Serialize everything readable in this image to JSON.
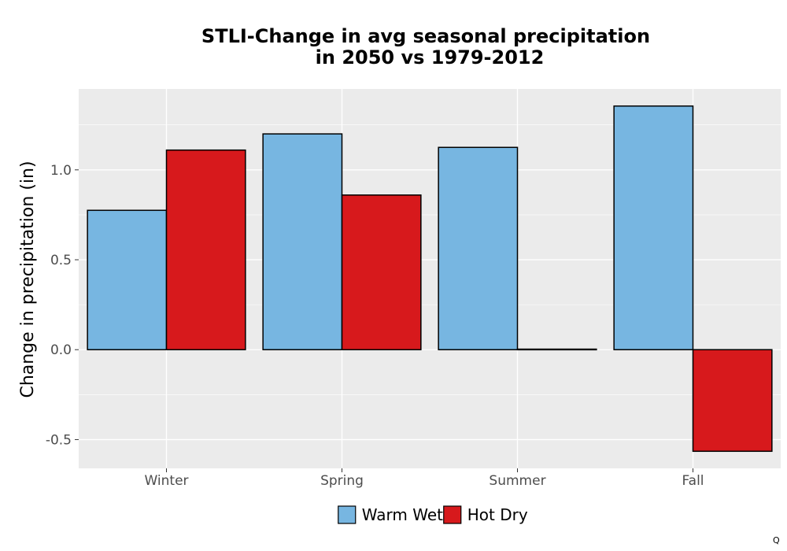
{
  "chart_data": {
    "type": "bar",
    "title": "STLI-Change in avg seasonal precipitation",
    "subtitle": "in 2050 vs 1979-2012",
    "xlabel": "",
    "ylabel": "Change in precipitation (in)",
    "categories": [
      "Winter",
      "Spring",
      "Summer",
      "Fall"
    ],
    "series": [
      {
        "name": "Warm Wet",
        "color": "#77b6e1",
        "values": [
          0.775,
          1.2,
          1.125,
          1.355
        ]
      },
      {
        "name": "Hot Dry",
        "color": "#d7191c",
        "values": [
          1.11,
          0.86,
          0.003,
          -0.565
        ]
      }
    ],
    "ylim": [
      -0.66,
      1.45
    ],
    "yticks": [
      -0.5,
      0.0,
      0.5,
      1.0
    ],
    "ytick_labels": [
      "-0.5",
      "0.0",
      "0.5",
      "1.0"
    ],
    "grid": true,
    "legend_position": "bottom",
    "panel_background": "#ebebeb",
    "bar_outline": "#000000"
  },
  "corner_mark": "Q"
}
